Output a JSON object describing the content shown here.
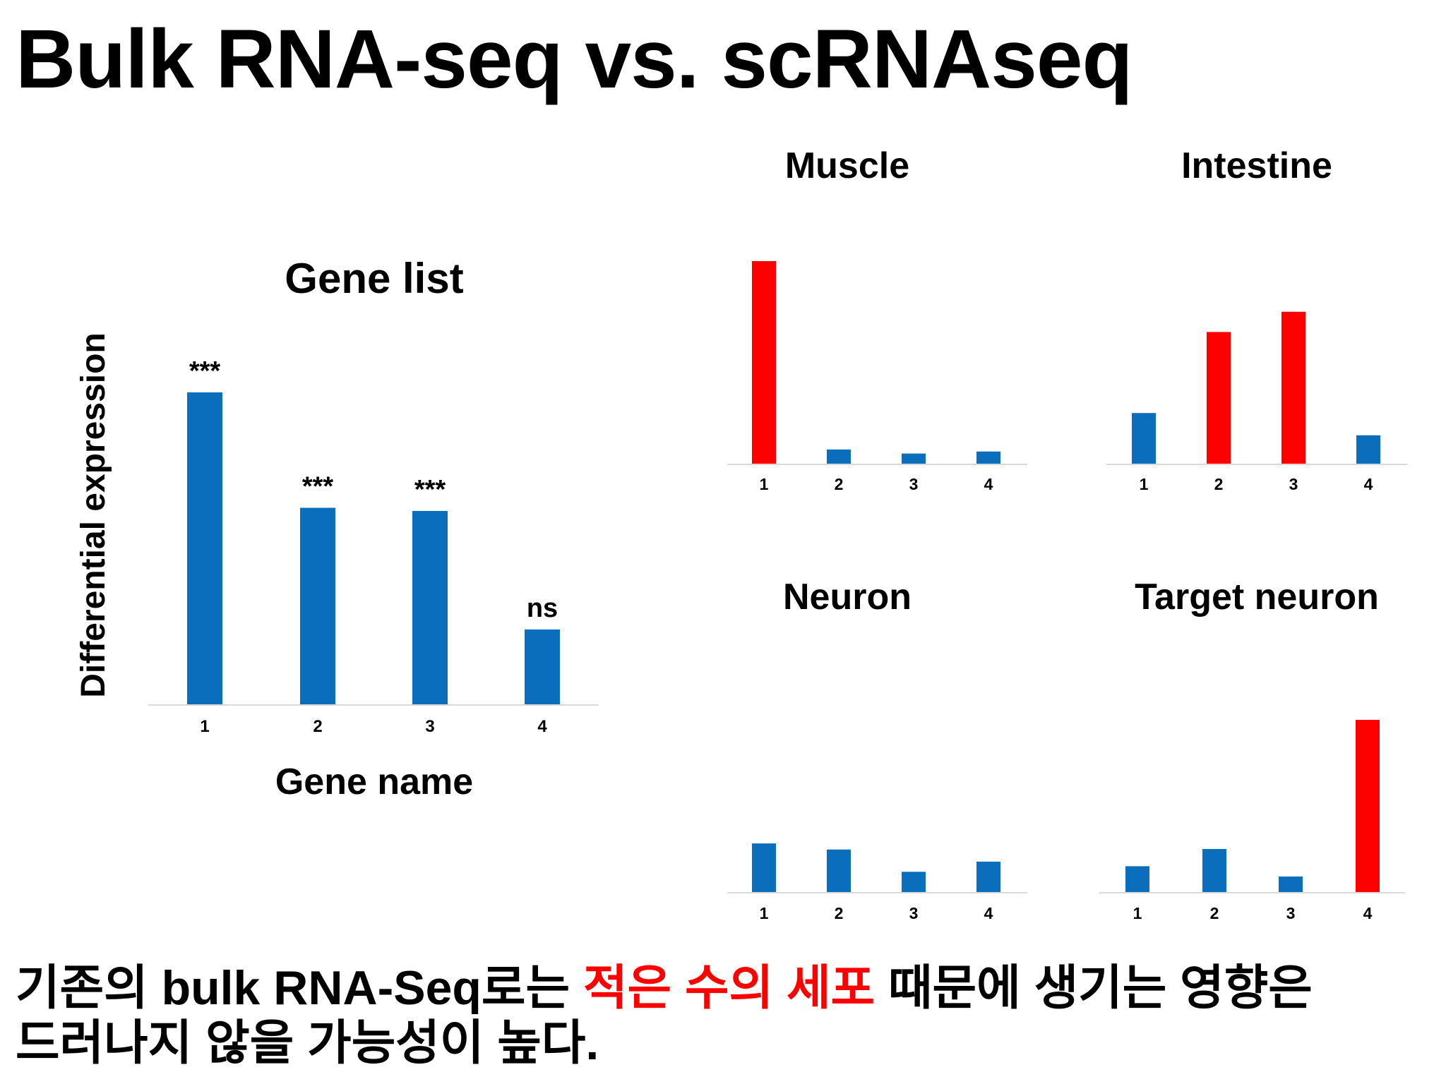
{
  "slide": {
    "title": "Bulk RNA-seq vs. scRNAseq",
    "caption": {
      "part1": "기존의 bulk RNA-Seq로는 ",
      "highlight": "적은 수의 세포",
      "part2": " 때문에 생기는 영향은",
      "line2": "드러나지 않을 가능성이 높다."
    }
  },
  "colors": {
    "blue": "#0a6ebd",
    "red": "#ff0000",
    "axis": "#d9d9d9"
  },
  "chart_data": [
    {
      "type": "bar",
      "title": "Gene list",
      "xlabel": "Gene name",
      "ylabel": "Differential expression",
      "categories": [
        "1",
        "2",
        "3",
        "4"
      ],
      "values": [
        100,
        63,
        62,
        24
      ],
      "bar_colors": [
        "blue",
        "blue",
        "blue",
        "blue"
      ],
      "annotations": [
        "***",
        "***",
        "***",
        "ns"
      ],
      "ylim": [
        0,
        100
      ]
    },
    {
      "type": "bar",
      "title": "Muscle",
      "categories": [
        "1",
        "2",
        "3",
        "4"
      ],
      "values": [
        100,
        7,
        5,
        6
      ],
      "bar_colors": [
        "red",
        "blue",
        "blue",
        "blue"
      ],
      "ylim": [
        0,
        100
      ]
    },
    {
      "type": "bar",
      "title": "Intestine",
      "categories": [
        "1",
        "2",
        "3",
        "4"
      ],
      "values": [
        25,
        65,
        75,
        14
      ],
      "bar_colors": [
        "blue",
        "red",
        "red",
        "blue"
      ],
      "ylim": [
        0,
        100
      ]
    },
    {
      "type": "bar",
      "title": "Neuron",
      "categories": [
        "1",
        "2",
        "3",
        "4"
      ],
      "values": [
        24,
        21,
        10,
        15
      ],
      "bar_colors": [
        "blue",
        "blue",
        "blue",
        "blue"
      ],
      "ylim": [
        0,
        100
      ]
    },
    {
      "type": "bar",
      "title": "Target neuron",
      "categories": [
        "1",
        "2",
        "3",
        "4"
      ],
      "values": [
        15,
        25,
        9,
        100
      ],
      "bar_colors": [
        "blue",
        "blue",
        "blue",
        "red"
      ],
      "ylim": [
        0,
        100
      ]
    }
  ]
}
